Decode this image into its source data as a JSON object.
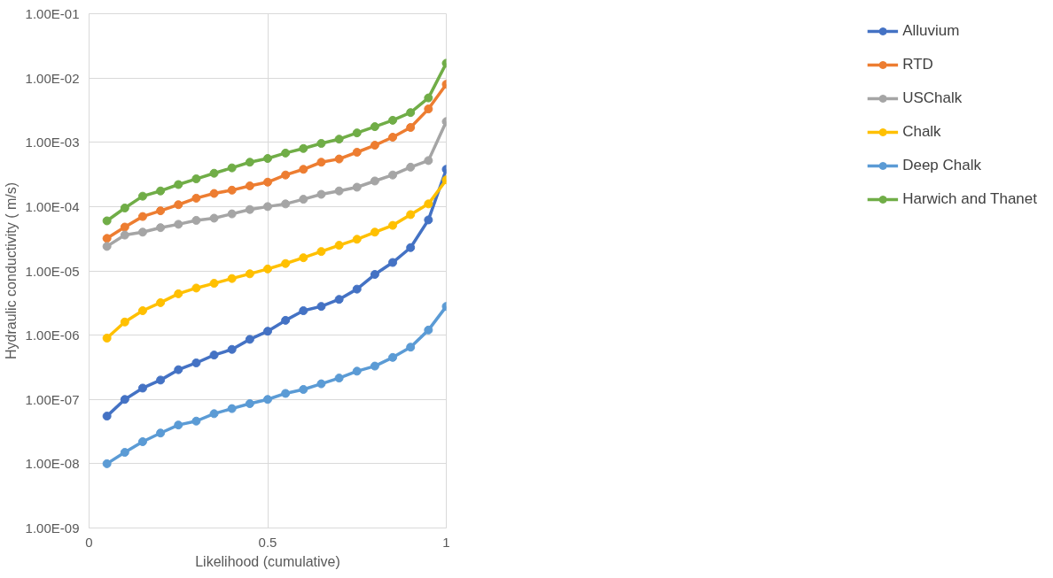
{
  "chart_data": {
    "type": "line",
    "xlabel": "Likelihood (cumulative)",
    "ylabel": "Hydraulic conductivity ( m/s)",
    "x": [
      0.05,
      0.1,
      0.15,
      0.2,
      0.25,
      0.3,
      0.35,
      0.4,
      0.45,
      0.5,
      0.55,
      0.6,
      0.65,
      0.7,
      0.75,
      0.8,
      0.85,
      0.9,
      0.95,
      1.0
    ],
    "series": [
      {
        "name": "Alluvium",
        "color": "#4472c4",
        "values": [
          5.5e-08,
          1e-07,
          1.5e-07,
          2e-07,
          2.9e-07,
          3.7e-07,
          4.9e-07,
          6e-07,
          8.6e-07,
          1.15e-06,
          1.7e-06,
          2.4e-06,
          2.8e-06,
          3.6e-06,
          5.2e-06,
          8.8e-06,
          1.35e-05,
          2.3e-05,
          6.2e-05,
          0.00038
        ]
      },
      {
        "name": "RTD",
        "color": "#ed7d31",
        "values": [
          3.2e-05,
          4.8e-05,
          7e-05,
          8.6e-05,
          0.000107,
          0.000135,
          0.00016,
          0.00018,
          0.00021,
          0.00024,
          0.00031,
          0.00038,
          0.00049,
          0.00055,
          0.0007,
          0.0009,
          0.0012,
          0.0017,
          0.0033,
          0.008
        ]
      },
      {
        "name": "USChalk",
        "color": "#a5a5a5",
        "values": [
          2.4e-05,
          3.6e-05,
          4e-05,
          4.7e-05,
          5.3e-05,
          6.1e-05,
          6.6e-05,
          7.7e-05,
          9e-05,
          0.0001,
          0.00011,
          0.00013,
          0.000155,
          0.000175,
          0.0002,
          0.00025,
          0.00031,
          0.00041,
          0.00052,
          0.0021
        ]
      },
      {
        "name": "Chalk",
        "color": "#ffc000",
        "values": [
          9e-07,
          1.6e-06,
          2.4e-06,
          3.2e-06,
          4.4e-06,
          5.4e-06,
          6.4e-06,
          7.6e-06,
          9e-06,
          1.07e-05,
          1.3e-05,
          1.6e-05,
          2e-05,
          2.5e-05,
          3.1e-05,
          4e-05,
          5.1e-05,
          7.5e-05,
          0.00011,
          0.00026
        ]
      },
      {
        "name": "Deep Chalk",
        "color": "#5b9bd5",
        "values": [
          1e-08,
          1.5e-08,
          2.2e-08,
          3e-08,
          4e-08,
          4.6e-08,
          6e-08,
          7.2e-08,
          8.6e-08,
          1e-07,
          1.24e-07,
          1.43e-07,
          1.75e-07,
          2.15e-07,
          2.75e-07,
          3.3e-07,
          4.5e-07,
          6.5e-07,
          1.2e-06,
          2.8e-06
        ]
      },
      {
        "name": "Harwich and Thanet",
        "color": "#70ad47",
        "values": [
          6e-05,
          9.5e-05,
          0.000145,
          0.000175,
          0.00022,
          0.00027,
          0.00033,
          0.0004,
          0.00049,
          0.00056,
          0.00068,
          0.0008,
          0.00096,
          0.00112,
          0.0014,
          0.00175,
          0.0022,
          0.0029,
          0.0049,
          0.017
        ]
      }
    ],
    "xlim": [
      0,
      1
    ],
    "xticks": [
      0,
      0.5,
      1
    ],
    "ylim": [
      1e-09,
      0.1
    ],
    "yticks": [
      {
        "value": 1e-09,
        "label": "1.00E-09"
      },
      {
        "value": 1e-08,
        "label": "1.00E-08"
      },
      {
        "value": 1e-07,
        "label": "1.00E-07"
      },
      {
        "value": 1e-06,
        "label": "1.00E-06"
      },
      {
        "value": 1e-05,
        "label": "1.00E-05"
      },
      {
        "value": 0.0001,
        "label": "1.00E-04"
      },
      {
        "value": 0.001,
        "label": "1.00E-03"
      },
      {
        "value": 0.01,
        "label": "1.00E-02"
      },
      {
        "value": 0.1,
        "label": "1.00E-01"
      }
    ],
    "log": "y",
    "grid": true,
    "legend": "right",
    "marker": "circle",
    "line_style": "solid"
  }
}
